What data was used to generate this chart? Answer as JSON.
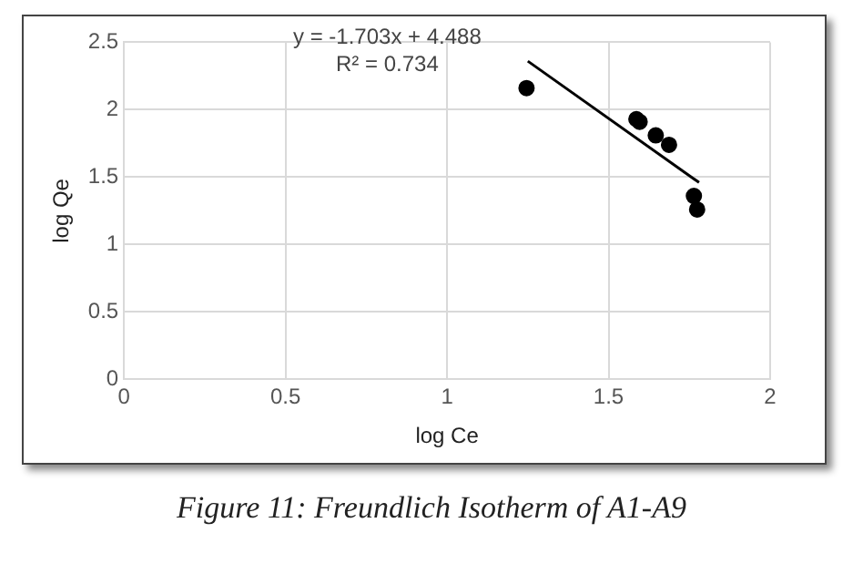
{
  "chart_data": {
    "type": "scatter",
    "xlabel": "log Ce",
    "ylabel": "log Qe",
    "x": [
      1.246,
      1.586,
      1.596,
      1.646,
      1.687,
      1.764,
      1.774
    ],
    "series": [
      {
        "color": "#000000",
        "values": [
          2.16,
          1.93,
          1.91,
          1.81,
          1.74,
          1.36,
          1.26
        ],
        "marker": "circle"
      },
      {
        "type": "line",
        "color": "#000000",
        "x": [
          1.25,
          1.78
        ],
        "values": [
          2.36,
          1.46
        ],
        "marker": "none"
      }
    ],
    "xlim": [
      0,
      2
    ],
    "xticks": [
      0,
      0.5,
      1,
      1.5,
      2
    ],
    "ylim": [
      0,
      2.5
    ],
    "yticks": [
      0,
      0.5,
      1,
      1.5,
      2,
      2.5
    ],
    "grid": true,
    "legend": false,
    "annotations": [
      "y = -1.703x + 4.488",
      "R² = 0.734",
      "Figure 11: Freundlich Isotherm of A1-A9"
    ]
  }
}
